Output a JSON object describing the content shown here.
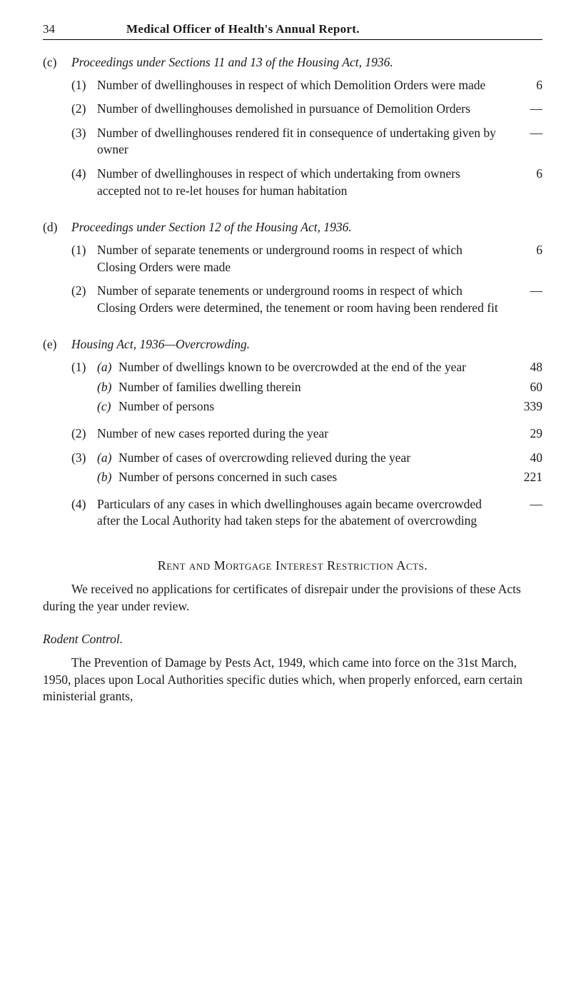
{
  "page_number": "34",
  "page_title": "Medical Officer of Health's Annual Report.",
  "section_c": {
    "letter": "(c)",
    "heading": "Proceedings under Sections 11 and 13 of the Housing Act, 1936.",
    "items": [
      {
        "num": "(1)",
        "text": "Number of dwellinghouses in respect of which Demolition Orders were made",
        "value": "6"
      },
      {
        "num": "(2)",
        "text": "Number of dwellinghouses demolished in pursuance of Demolition Orders",
        "value": "—"
      },
      {
        "num": "(3)",
        "text": "Number of dwellinghouses rendered fit in consequence of undertaking given by owner",
        "value": "—"
      },
      {
        "num": "(4)",
        "text": "Number of dwellinghouses in respect of which undertaking from owners accepted not to re-let houses for human habitation",
        "value": "6"
      }
    ]
  },
  "section_d": {
    "letter": "(d)",
    "heading": "Proceedings under Section 12 of the Housing Act, 1936.",
    "items": [
      {
        "num": "(1)",
        "text": "Number of separate tenements or underground rooms in respect of which Closing Orders were made",
        "value": "6"
      },
      {
        "num": "(2)",
        "text": "Number of separate tenements or underground rooms in respect of which Closing Orders were determined, the tenement or room having been rendered fit",
        "value": "—"
      }
    ]
  },
  "section_e": {
    "letter": "(e)",
    "heading": "Housing Act, 1936—Overcrowding.",
    "items": [
      {
        "num": "(1)",
        "subs": [
          {
            "letter": "(a)",
            "text": "Number of dwellings known to be overcrowded at the end of the year",
            "value": "48"
          },
          {
            "letter": "(b)",
            "text": "Number of families dwelling therein",
            "value": "60"
          },
          {
            "letter": "(c)",
            "text": "Number of persons",
            "value": "339"
          }
        ]
      },
      {
        "num": "(2)",
        "text": "Number of new cases reported during the year",
        "value": "29"
      },
      {
        "num": "(3)",
        "subs": [
          {
            "letter": "(a)",
            "text": "Number of cases of overcrowding relieved during the year",
            "value": "40"
          },
          {
            "letter": "(b)",
            "text": "Number of persons concerned in such cases",
            "value": "221"
          }
        ]
      },
      {
        "num": "(4)",
        "text": "Particulars of any cases in which dwellinghouses again became overcrowded after the Local Authority had taken steps for the abatement of overcrowding",
        "value": "—"
      }
    ]
  },
  "rent_section": {
    "heading": "Rent and Mortgage Interest Restriction Acts.",
    "text": "We received no applications for certificates of disrepair under the provisions of these Acts during the year under review."
  },
  "rodent_section": {
    "heading": "Rodent Control.",
    "text": "The Prevention of Damage by Pests Act, 1949, which came into force on the 31st March, 1950, places upon Local Authorities specific duties which, when properly enforced, earn certain ministerial grants,"
  }
}
